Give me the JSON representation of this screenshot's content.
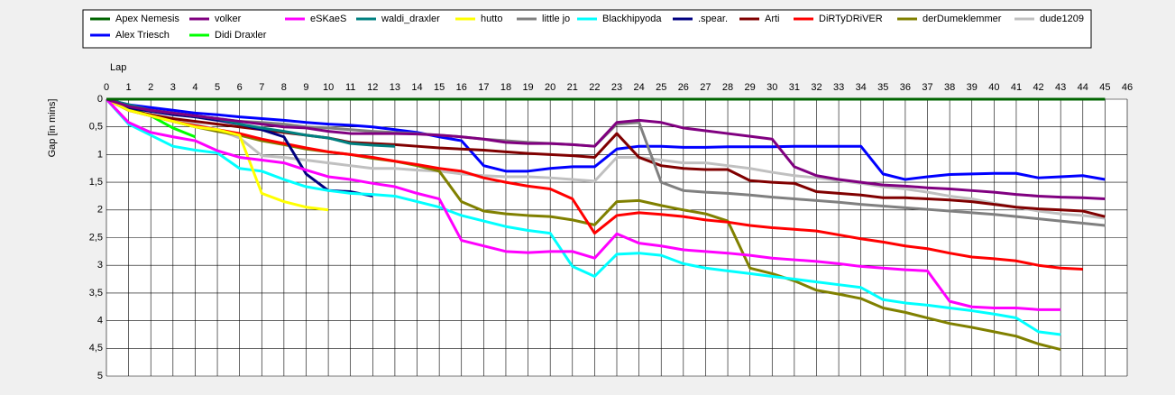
{
  "chart_data": {
    "type": "line",
    "x_label": "Lap",
    "y_label": "Gap [in mins]",
    "legend": "top",
    "grid": true,
    "y_reversed": true,
    "xlim": [
      0,
      46
    ],
    "xticks": [
      0,
      1,
      2,
      3,
      4,
      5,
      6,
      7,
      8,
      9,
      10,
      11,
      12,
      13,
      14,
      15,
      16,
      17,
      18,
      19,
      20,
      21,
      22,
      23,
      24,
      25,
      26,
      27,
      28,
      29,
      30,
      31,
      32,
      33,
      34,
      35,
      36,
      37,
      38,
      39,
      40,
      41,
      42,
      43,
      44,
      45,
      46
    ],
    "ylim": [
      0,
      5
    ],
    "yticks": [
      0,
      {
        "value": 0.5,
        "label": "0,5"
      },
      1,
      {
        "value": 1.5,
        "label": "1,5"
      },
      2,
      {
        "value": 2.5,
        "label": "2,5"
      },
      3,
      {
        "value": 3.5,
        "label": "3,5"
      },
      4,
      {
        "value": 4.5,
        "label": "4,5"
      },
      5
    ],
    "x": [
      0,
      1,
      2,
      3,
      4,
      5,
      6,
      7,
      8,
      9,
      10,
      11,
      12,
      13,
      14,
      15,
      16,
      17,
      18,
      19,
      20,
      21,
      22,
      23,
      24,
      25,
      26,
      27,
      28,
      29,
      30,
      31,
      32,
      33,
      34,
      35,
      36,
      37,
      38,
      39,
      40,
      41,
      42,
      43,
      44,
      45
    ],
    "series": [
      {
        "name": "Apex Nemesis",
        "color": "#006400",
        "values": [
          0,
          0,
          0,
          0,
          0,
          0,
          0,
          0,
          0,
          0,
          0,
          0,
          0,
          0,
          0,
          0,
          0,
          0,
          0,
          0,
          0,
          0,
          0,
          0,
          0,
          0,
          0,
          0,
          0,
          0,
          0,
          0,
          0,
          0,
          0,
          0,
          0,
          0,
          0,
          0,
          0,
          0,
          0,
          0,
          0,
          0
        ]
      },
      {
        "name": "volker",
        "color": "#800080",
        "values": [
          0,
          0.13,
          0.2,
          0.25,
          0.3,
          0.35,
          0.4,
          0.45,
          0.5,
          0.52,
          0.58,
          0.62,
          0.62,
          0.62,
          0.63,
          0.65,
          0.68,
          0.72,
          0.78,
          0.8,
          0.8,
          0.82,
          0.85,
          0.42,
          0.38,
          0.42,
          0.52,
          0.57,
          0.62,
          0.67,
          0.72,
          1.22,
          1.38,
          1.45,
          1.5,
          1.55,
          1.57,
          1.6,
          1.62,
          1.65,
          1.68,
          1.72,
          1.75,
          1.77,
          1.78,
          1.8
        ]
      },
      {
        "name": "eSKaeS",
        "color": "#ff00ff",
        "values": [
          0,
          0.42,
          0.6,
          0.68,
          0.75,
          0.93,
          1.05,
          1.1,
          1.15,
          1.28,
          1.4,
          1.45,
          1.52,
          1.58,
          1.7,
          1.8,
          2.55,
          2.65,
          2.75,
          2.77,
          2.75,
          2.75,
          2.87,
          2.43,
          2.6,
          2.65,
          2.72,
          2.75,
          2.78,
          2.82,
          2.87,
          2.9,
          2.93,
          2.97,
          3.02,
          3.05,
          3.08,
          3.1,
          3.65,
          3.75,
          3.77,
          3.77,
          3.8,
          3.8,
          null,
          null
        ]
      },
      {
        "name": "waldi_draxler",
        "color": "#008080",
        "values": [
          0,
          0.1,
          0.2,
          0.25,
          0.3,
          0.35,
          0.45,
          0.52,
          0.58,
          0.65,
          0.7,
          0.8,
          0.83,
          0.85,
          null,
          null,
          null,
          null,
          null,
          null,
          null,
          null,
          null,
          null,
          null,
          null,
          null,
          null,
          null,
          null,
          null,
          null,
          null,
          null,
          null,
          null,
          null,
          null,
          null,
          null,
          null,
          null,
          null,
          null,
          null,
          null
        ]
      },
      {
        "name": "hutto",
        "color": "#ffff00",
        "values": [
          0,
          0.2,
          0.3,
          0.4,
          0.5,
          0.55,
          0.65,
          1.7,
          1.85,
          1.95,
          2.0,
          null,
          null,
          null,
          null,
          null,
          null,
          null,
          null,
          null,
          null,
          null,
          null,
          null,
          null,
          null,
          null,
          null,
          null,
          null,
          null,
          null,
          null,
          null,
          null,
          null,
          null,
          null,
          null,
          null,
          null,
          null,
          null,
          null,
          null,
          null
        ]
      },
      {
        "name": "little jo",
        "color": "#808080",
        "values": [
          0,
          0.1,
          0.2,
          0.25,
          0.3,
          0.35,
          0.4,
          0.42,
          0.45,
          0.5,
          0.52,
          0.55,
          0.58,
          0.6,
          0.62,
          0.65,
          0.68,
          0.72,
          0.75,
          0.78,
          0.8,
          0.82,
          0.85,
          0.45,
          0.42,
          1.5,
          1.65,
          1.68,
          1.7,
          1.73,
          1.77,
          1.8,
          1.83,
          1.86,
          1.9,
          1.93,
          1.96,
          1.99,
          2.02,
          2.05,
          2.08,
          2.12,
          2.16,
          2.2,
          2.24,
          2.28
        ]
      },
      {
        "name": "Blackhipyoda",
        "color": "#00ffff",
        "values": [
          0,
          0.45,
          0.65,
          0.85,
          0.92,
          0.97,
          1.25,
          1.3,
          1.45,
          1.58,
          1.65,
          1.7,
          1.72,
          1.75,
          1.85,
          1.95,
          2.1,
          2.2,
          2.3,
          2.37,
          2.42,
          3.02,
          3.2,
          2.8,
          2.78,
          2.82,
          2.97,
          3.05,
          3.1,
          3.15,
          3.2,
          3.25,
          3.3,
          3.35,
          3.4,
          3.62,
          3.68,
          3.72,
          3.77,
          3.82,
          3.88,
          3.95,
          4.2,
          4.25,
          null,
          null
        ]
      },
      {
        "name": ".spear.",
        "color": "#000080",
        "values": [
          0,
          0.15,
          0.22,
          0.28,
          0.32,
          0.38,
          0.45,
          0.55,
          0.68,
          1.35,
          1.65,
          1.67,
          1.75,
          null,
          null,
          null,
          null,
          null,
          null,
          null,
          null,
          null,
          null,
          null,
          null,
          null,
          null,
          null,
          null,
          null,
          null,
          null,
          null,
          null,
          null,
          null,
          null,
          null,
          null,
          null,
          null,
          null,
          null,
          null,
          null,
          null
        ]
      },
      {
        "name": "Arti",
        "color": "#800000",
        "values": [
          0,
          0.2,
          0.28,
          0.35,
          0.4,
          0.45,
          0.5,
          0.55,
          0.6,
          0.65,
          0.7,
          0.78,
          0.8,
          0.82,
          0.85,
          0.88,
          0.9,
          0.92,
          0.95,
          0.98,
          1.0,
          1.02,
          1.05,
          0.62,
          1.05,
          1.2,
          1.25,
          1.27,
          1.27,
          1.47,
          1.5,
          1.52,
          1.67,
          1.7,
          1.73,
          1.78,
          1.78,
          1.8,
          1.82,
          1.85,
          1.9,
          1.95,
          1.98,
          2.0,
          2.02,
          2.12
        ]
      },
      {
        "name": "DiRTyDRiVER",
        "color": "#ff0000",
        "values": [
          0,
          0.2,
          0.3,
          0.4,
          0.48,
          0.55,
          0.62,
          0.72,
          0.8,
          0.88,
          0.95,
          1.0,
          1.05,
          1.12,
          1.18,
          1.25,
          1.3,
          1.42,
          1.5,
          1.57,
          1.62,
          1.8,
          2.42,
          2.1,
          2.05,
          2.08,
          2.12,
          2.18,
          2.22,
          2.28,
          2.32,
          2.35,
          2.38,
          2.45,
          2.52,
          2.58,
          2.65,
          2.7,
          2.78,
          2.85,
          2.88,
          2.92,
          3.0,
          3.05,
          3.07,
          null
        ]
      },
      {
        "name": "derDumeklemmer",
        "color": "#808000",
        "values": [
          0,
          0.2,
          0.3,
          0.4,
          0.5,
          0.58,
          0.65,
          0.75,
          0.82,
          0.9,
          0.95,
          1.0,
          1.07,
          1.12,
          1.2,
          1.3,
          1.85,
          2.02,
          2.07,
          2.1,
          2.12,
          2.18,
          2.27,
          1.85,
          1.83,
          1.92,
          2.0,
          2.07,
          2.2,
          3.05,
          3.15,
          3.28,
          3.45,
          3.52,
          3.6,
          3.77,
          3.85,
          3.95,
          4.05,
          4.12,
          4.2,
          4.28,
          4.42,
          4.52,
          null,
          null
        ]
      },
      {
        "name": "dude1209",
        "color": "#c0c0c0",
        "values": [
          0,
          0.2,
          0.3,
          0.38,
          0.45,
          0.55,
          0.7,
          1.02,
          1.05,
          1.1,
          1.15,
          1.2,
          1.25,
          1.25,
          1.28,
          1.3,
          1.35,
          1.38,
          1.4,
          1.4,
          1.42,
          1.45,
          1.48,
          1.05,
          1.05,
          1.1,
          1.15,
          1.15,
          1.2,
          1.25,
          1.32,
          1.38,
          1.42,
          1.47,
          1.52,
          1.58,
          1.62,
          1.68,
          1.75,
          1.8,
          1.88,
          1.95,
          2.02,
          2.07,
          2.1,
          2.15
        ]
      },
      {
        "name": "Alex Triesch",
        "color": "#0000ff",
        "values": [
          0,
          0.1,
          0.15,
          0.2,
          0.25,
          0.28,
          0.32,
          0.35,
          0.38,
          0.42,
          0.45,
          0.47,
          0.5,
          0.55,
          0.6,
          0.68,
          0.75,
          1.2,
          1.3,
          1.3,
          1.25,
          1.22,
          1.22,
          0.9,
          0.85,
          0.85,
          0.87,
          0.87,
          0.86,
          0.86,
          0.86,
          0.85,
          0.85,
          0.85,
          0.85,
          1.35,
          1.45,
          1.4,
          1.36,
          1.35,
          1.34,
          1.34,
          1.42,
          1.4,
          1.38,
          1.45
        ]
      },
      {
        "name": "Didi Draxler",
        "color": "#00ff00",
        "values": [
          0,
          0.15,
          0.3,
          0.52,
          0.68,
          null,
          null,
          null,
          null,
          null,
          null,
          null,
          null,
          null,
          null,
          null,
          null,
          null,
          null,
          null,
          null,
          null,
          null,
          null,
          null,
          null,
          null,
          null,
          null,
          null,
          null,
          null,
          null,
          null,
          null,
          null,
          null,
          null,
          null,
          null,
          null,
          null,
          null,
          null,
          null,
          null
        ]
      }
    ]
  }
}
